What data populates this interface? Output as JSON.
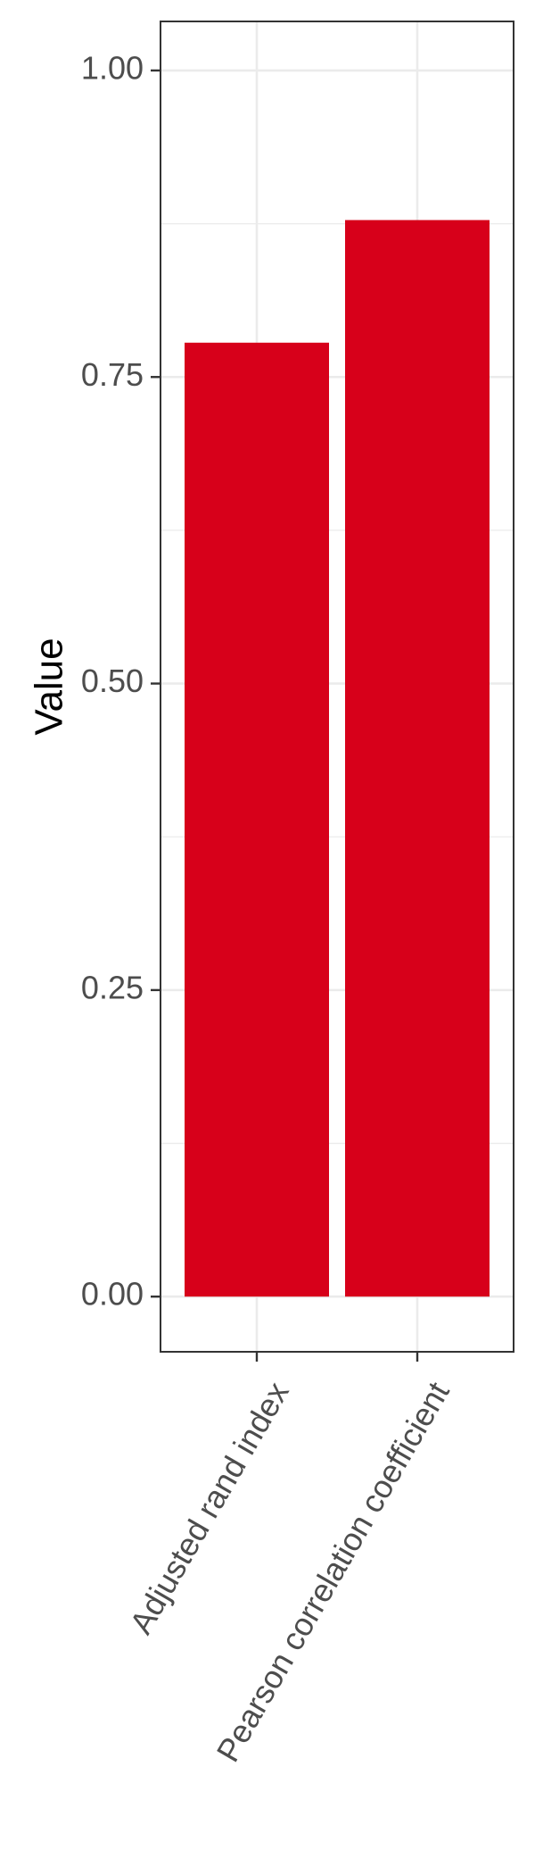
{
  "chart_data": {
    "type": "bar",
    "categories": [
      "Adjusted rand index",
      "Pearson correlation coefficient"
    ],
    "values": [
      0.778,
      0.878
    ],
    "title": "",
    "xlabel": "",
    "ylabel": "Value",
    "ylim": [
      -0.045,
      1.04
    ],
    "yticks": [
      0.0,
      0.25,
      0.5,
      0.75,
      1.0
    ],
    "ytick_labels": [
      "0.00",
      "0.25",
      "0.50",
      "0.75",
      "1.00"
    ],
    "grid": true,
    "legend": "none",
    "colors": {
      "bar": "#d7001a",
      "grid": "#ebebeb",
      "panel_border": "#333333",
      "tick_text": "#4d4d4d",
      "axis_title": "#000000"
    }
  }
}
